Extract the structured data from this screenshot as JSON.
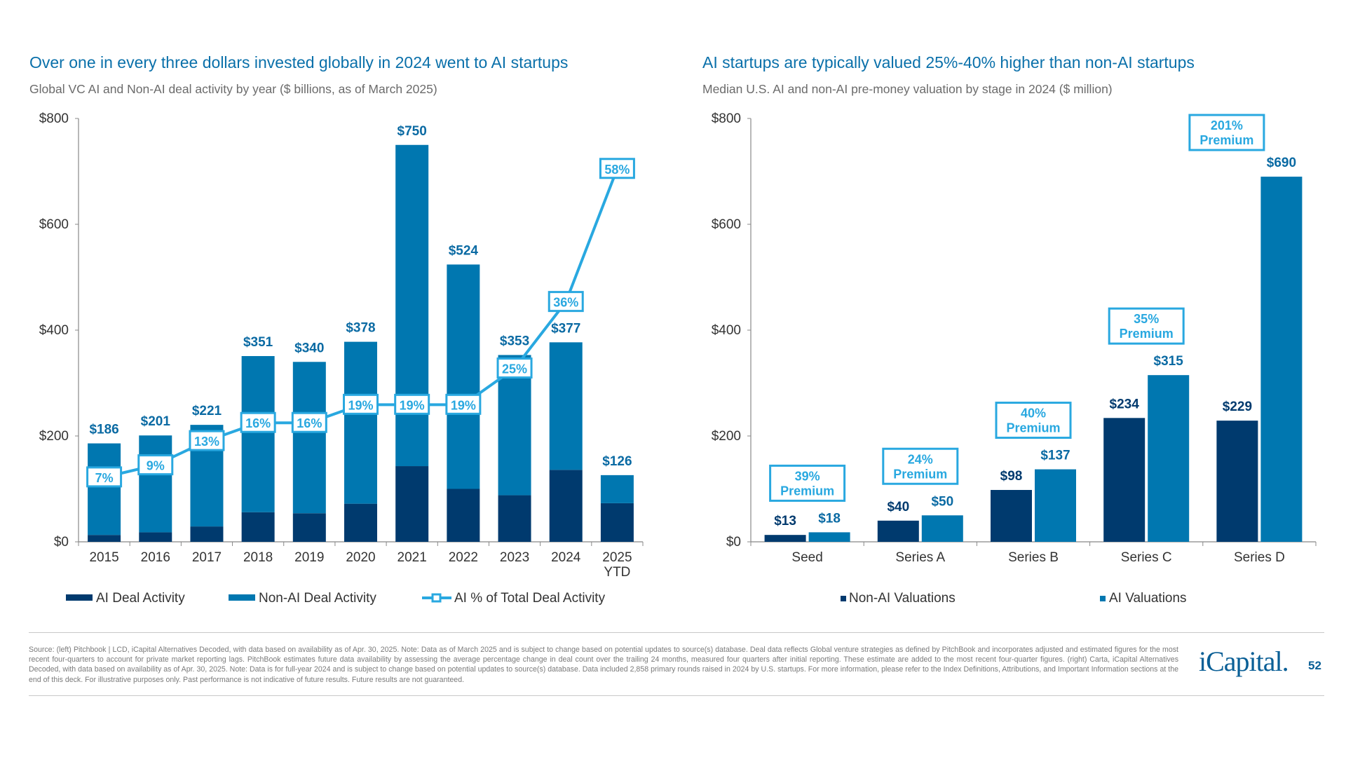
{
  "colors": {
    "ai": "#003a6e",
    "non_ai": "#0077b0",
    "line": "#29a8e0",
    "title": "#0a70aa"
  },
  "left": {
    "title": "Over one in every three dollars invested globally in 2024 went to AI startups",
    "subtitle": "Global VC AI and Non-AI deal activity by year ($ billions, as of March 2025)"
  },
  "right": {
    "title": "AI startups are typically valued 25%-40% higher than non-AI startups",
    "subtitle": "Median U.S. AI and non-AI pre-money valuation by stage in 2024 ($ million)"
  },
  "chart_data": [
    {
      "type": "bar",
      "stacked": true,
      "categories": [
        "2015",
        "2016",
        "2017",
        "2018",
        "2019",
        "2020",
        "2021",
        "2022",
        "2023",
        "2024",
        "2025 YTD"
      ],
      "totals": [
        186,
        201,
        221,
        351,
        340,
        378,
        750,
        524,
        353,
        377,
        126
      ],
      "total_labels": [
        "$186",
        "$201",
        "$221",
        "$351",
        "$340",
        "$378",
        "$750",
        "$524",
        "$353",
        "$377",
        "$126"
      ],
      "series": [
        {
          "name": "AI Deal Activity",
          "values": [
            13,
            18,
            29,
            56,
            54,
            72,
            143,
            100,
            88,
            136,
            73
          ]
        },
        {
          "name": "Non-AI Deal Activity",
          "values": [
            173,
            183,
            192,
            295,
            286,
            306,
            607,
            424,
            265,
            241,
            53
          ]
        }
      ],
      "line_series": {
        "name": "AI % of Total Deal Activity",
        "values": [
          7,
          9,
          13,
          16,
          16,
          19,
          19,
          19,
          25,
          36,
          58
        ],
        "labels": [
          "7%",
          "9%",
          "13%",
          "16%",
          "16%",
          "19%",
          "19%",
          "19%",
          "25%",
          "36%",
          "58%"
        ]
      },
      "yticks": [
        "$0",
        "$200",
        "$400",
        "$600",
        "$800"
      ],
      "ylim": [
        0,
        800
      ],
      "legend": "bottom"
    },
    {
      "type": "bar",
      "categories": [
        "Seed",
        "Series A",
        "Series B",
        "Series C",
        "Series D"
      ],
      "series": [
        {
          "name": "Non-AI Valuations",
          "values": [
            13,
            40,
            98,
            234,
            229
          ],
          "labels": [
            "$13",
            "$40",
            "$98",
            "$234",
            "$229"
          ]
        },
        {
          "name": "AI Valuations",
          "values": [
            18,
            50,
            137,
            315,
            690
          ],
          "labels": [
            "$18",
            "$50",
            "$137",
            "$315",
            "$690"
          ]
        }
      ],
      "annotations": [
        [
          "39%",
          "Premium"
        ],
        [
          "24%",
          "Premium"
        ],
        [
          "40%",
          "Premium"
        ],
        [
          "35%",
          "Premium"
        ],
        [
          "201%",
          "Premium"
        ]
      ],
      "yticks": [
        "$0",
        "$200",
        "$400",
        "$600",
        "$800"
      ],
      "ylim": [
        0,
        800
      ],
      "legend": "bottom"
    }
  ],
  "footer": {
    "source": "Source: (left) Pitchbook | LCD, iCapital Alternatives Decoded, with data based on availability as of Apr. 30, 2025. Note: Data as of March 2025 and is subject to change based on potential updates to source(s) database. Deal data reflects Global venture strategies as defined by PitchBook and incorporates adjusted and estimated figures for the most recent four-quarters to account for private market reporting lags. PitchBook estimates future data availability by assessing the average percentage change in deal count over the trailing 24 months, measured four quarters after initial reporting. These estimate are added to the most recent four-quarter figures. (right) Carta, iCapital Alternatives Decoded, with data based on availability as of Apr. 30, 2025. Note: Data is for full-year 2024 and is subject to change based on potential updates to source(s) database. Data included 2,858 primary rounds raised in 2024 by U.S. startups. For more information, please refer to the Index Definitions, Attributions, and Important Information sections at the end of this deck. For illustrative purposes only. Past performance is not indicative of future results. Future results are not guaranteed.",
    "logo": "iCapital.",
    "page_number": "52"
  }
}
